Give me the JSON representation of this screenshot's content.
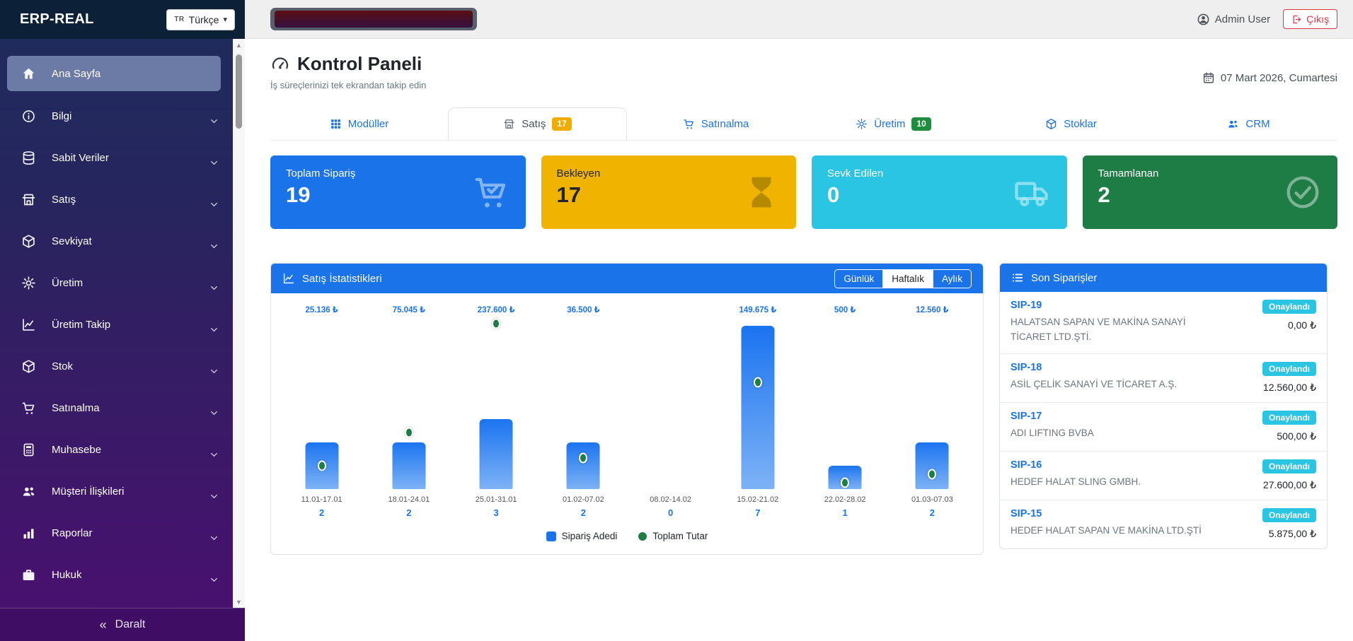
{
  "app": {
    "brand": "ERP-REAL",
    "language": {
      "code": "TR",
      "label": "Türkçe"
    }
  },
  "topbar": {
    "user": "Admin User",
    "logout_label": "Çıkış"
  },
  "sidebar": {
    "items": [
      {
        "label": "Ana Sayfa",
        "icon": "home-icon",
        "active": true,
        "expandable": false
      },
      {
        "label": "Bilgi",
        "icon": "info-icon",
        "active": false,
        "expandable": true
      },
      {
        "label": "Sabit Veriler",
        "icon": "database-icon",
        "active": false,
        "expandable": true
      },
      {
        "label": "Satış",
        "icon": "store-icon",
        "active": false,
        "expandable": true
      },
      {
        "label": "Sevkiyat",
        "icon": "package-icon",
        "active": false,
        "expandable": true
      },
      {
        "label": "Üretim",
        "icon": "gear-icon",
        "active": false,
        "expandable": true
      },
      {
        "label": "Üretim Takip",
        "icon": "chart-line-icon",
        "active": false,
        "expandable": true
      },
      {
        "label": "Stok",
        "icon": "package-icon",
        "active": false,
        "expandable": true
      },
      {
        "label": "Satınalma",
        "icon": "cart-icon",
        "active": false,
        "expandable": true
      },
      {
        "label": "Muhasebe",
        "icon": "calculator-icon",
        "active": false,
        "expandable": true
      },
      {
        "label": "Müşteri İlişkileri",
        "icon": "users-icon",
        "active": false,
        "expandable": true
      },
      {
        "label": "Raporlar",
        "icon": "bar-chart-icon",
        "active": false,
        "expandable": true
      },
      {
        "label": "Hukuk",
        "icon": "briefcase-icon",
        "active": false,
        "expandable": true
      }
    ],
    "collapse_label": "Daralt"
  },
  "page": {
    "title": "Kontrol Paneli",
    "subtitle": "İş süreçlerinizi tek ekrandan takip edin",
    "date": "07 Mart 2026, Cumartesi"
  },
  "tabs": [
    {
      "label": "Modüller",
      "icon": "grid-icon",
      "active": false,
      "badge": null,
      "badge_color": null
    },
    {
      "label": "Satış",
      "icon": "store-icon",
      "active": true,
      "badge": "17",
      "badge_color": "#f0ad00"
    },
    {
      "label": "Satınalma",
      "icon": "cart-icon",
      "active": false,
      "badge": null,
      "badge_color": null
    },
    {
      "label": "Üretim",
      "icon": "gear-icon",
      "active": false,
      "badge": "10",
      "badge_color": "#1e8e3e"
    },
    {
      "label": "Stoklar",
      "icon": "package-icon",
      "active": false,
      "badge": null,
      "badge_color": null
    },
    {
      "label": "CRM",
      "icon": "users-icon",
      "active": false,
      "badge": null,
      "badge_color": null
    }
  ],
  "stat_cards": [
    {
      "label": "Toplam Sipariş",
      "value": "19",
      "icon": "cart-check-icon",
      "bg": "#1a73e8",
      "text": "#ffffff",
      "icon_color": "rgba(255,255,255,0.75)"
    },
    {
      "label": "Bekleyen",
      "value": "17",
      "icon": "hourglass-icon",
      "bg": "#f0b400",
      "text": "#212529",
      "icon_color": "rgba(60,50,0,0.55)"
    },
    {
      "label": "Sevk Edilen",
      "value": "0",
      "icon": "truck-icon",
      "bg": "#2bc5e4",
      "text": "#ffffff",
      "icon_color": "rgba(255,255,255,0.75)"
    },
    {
      "label": "Tamamlanan",
      "value": "2",
      "icon": "check-circle-icon",
      "bg": "#1e7d45",
      "text": "#ffffff",
      "icon_color": "rgba(255,255,255,0.7)"
    }
  ],
  "chart": {
    "title": "Satış İstatistikleri",
    "range_buttons": [
      {
        "label": "Günlük",
        "active": false
      },
      {
        "label": "Haftalık",
        "active": true
      },
      {
        "label": "Aylık",
        "active": false
      }
    ]
  },
  "chart_data": {
    "type": "bar",
    "categories": [
      "11.01-17.01",
      "18.01-24.01",
      "25.01-31.01",
      "01.02-07.02",
      "08.02-14.02",
      "15.02-21.02",
      "22.02-28.02",
      "01.03-07.03"
    ],
    "series": [
      {
        "name": "Sipariş Adedi",
        "type": "bar",
        "color": "#1a73e8",
        "values": [
          2,
          2,
          3,
          2,
          0,
          7,
          1,
          2
        ]
      },
      {
        "name": "Toplam Tutar",
        "type": "point",
        "color": "#1e7d45",
        "values": [
          25136,
          75045,
          237600,
          36500,
          null,
          149675,
          500,
          12560
        ],
        "labels": [
          "25.136 ₺",
          "75.045 ₺",
          "237.600 ₺",
          "36.500 ₺",
          "",
          "149.675 ₺",
          "500 ₺",
          "12.560 ₺"
        ]
      }
    ],
    "title": "Satış İstatistikleri",
    "xlabel": "",
    "ylabel": "",
    "grid": false,
    "legend_position": "bottom"
  },
  "recent_orders": {
    "title": "Son Siparişler",
    "status_color": "#2bc5e4",
    "items": [
      {
        "id": "SIP-19",
        "customer": "HALATSAN SAPAN VE MAKİNA SANAYİ TİCARET LTD.ŞTİ.",
        "status": "Onaylandı",
        "amount": "0,00 ₺"
      },
      {
        "id": "SIP-18",
        "customer": "ASİL ÇELİK SANAYİ VE TİCARET A.Ş.",
        "status": "Onaylandı",
        "amount": "12.560,00 ₺"
      },
      {
        "id": "SIP-17",
        "customer": "ADI LIFTING BVBA",
        "status": "Onaylandı",
        "amount": "500,00 ₺"
      },
      {
        "id": "SIP-16",
        "customer": "HEDEF HALAT SLING GMBH.",
        "status": "Onaylandı",
        "amount": "27.600,00 ₺"
      },
      {
        "id": "SIP-15",
        "customer": "HEDEF HALAT SAPAN VE MAKİNA LTD.ŞTİ",
        "status": "Onaylandı",
        "amount": "5.875,00 ₺"
      }
    ]
  },
  "colors": {
    "accent_blue": "#1a73e8",
    "point_green": "#1e7d45",
    "logout_red": "#dc3545"
  }
}
